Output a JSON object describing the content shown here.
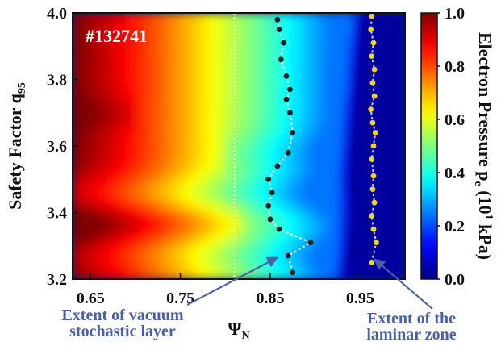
{
  "chart_data": {
    "type": "heatmap",
    "shot_label": "#132741",
    "xlabel_main": "Ψ",
    "xlabel_sub": "N",
    "ylabel_main": "Safety Factor q",
    "ylabel_sub": "95",
    "colorbar_label_main": "Electron Pressure p",
    "colorbar_label_sub": "e",
    "colorbar_label_unit_pre": " (10",
    "colorbar_label_unit_sup": "1",
    "colorbar_label_unit_post": " kPa)",
    "xlim": [
      0.63,
      1.0
    ],
    "ylim": [
      3.2,
      4.0
    ],
    "clim": [
      0.0,
      1.0
    ],
    "x_ticks": [
      "0.65",
      "0.75",
      "0.85",
      "0.95"
    ],
    "x_tick_values": [
      0.65,
      0.75,
      0.85,
      0.95
    ],
    "y_ticks": [
      "3.2",
      "3.4",
      "3.6",
      "3.8",
      "4.0"
    ],
    "y_tick_values": [
      3.2,
      3.4,
      3.6,
      3.8,
      4.0
    ],
    "colorbar_ticks": [
      "0.0",
      "0.2",
      "0.4",
      "0.6",
      "0.8",
      "1.0"
    ],
    "colorbar_tick_values": [
      0.0,
      0.2,
      0.4,
      0.6,
      0.8,
      1.0
    ],
    "colormap": "jet",
    "grid": false,
    "reference_line_x": 0.81,
    "series": [
      {
        "color": "#ffffff",
        "marker_color": "#222222",
        "x": [
          0.875,
          0.87,
          0.895,
          0.86,
          0.85,
          0.848,
          0.852,
          0.848,
          0.858,
          0.87,
          0.875,
          0.872,
          0.868,
          0.872,
          0.868,
          0.862,
          0.865,
          0.86,
          0.858
        ],
        "y": [
          3.22,
          3.27,
          3.31,
          3.35,
          3.38,
          3.42,
          3.46,
          3.5,
          3.54,
          3.58,
          3.64,
          3.7,
          3.74,
          3.77,
          3.81,
          3.86,
          3.91,
          3.95,
          3.98
        ]
      },
      {
        "color": "#c8d4ff",
        "marker_color": "#f4d21e",
        "x": [
          0.963,
          0.968,
          0.965,
          0.963,
          0.966,
          0.964,
          0.965,
          0.963,
          0.965,
          0.967,
          0.964,
          0.962,
          0.966,
          0.964,
          0.966,
          0.963,
          0.965,
          0.962,
          0.963
        ],
        "y": [
          3.25,
          3.31,
          3.35,
          3.39,
          3.43,
          3.47,
          3.51,
          3.56,
          3.6,
          3.64,
          3.67,
          3.71,
          3.75,
          3.79,
          3.83,
          3.87,
          3.91,
          3.95,
          3.99
        ]
      }
    ],
    "annotations": [
      {
        "text_lines": [
          "Extent of vacuum",
          "stochastic layer"
        ],
        "arrow_to": [
          0.858,
          3.265
        ]
      },
      {
        "text_lines": [
          "Extent of the",
          "laminar zone"
        ],
        "arrow_to": [
          0.966,
          3.26
        ]
      }
    ]
  }
}
